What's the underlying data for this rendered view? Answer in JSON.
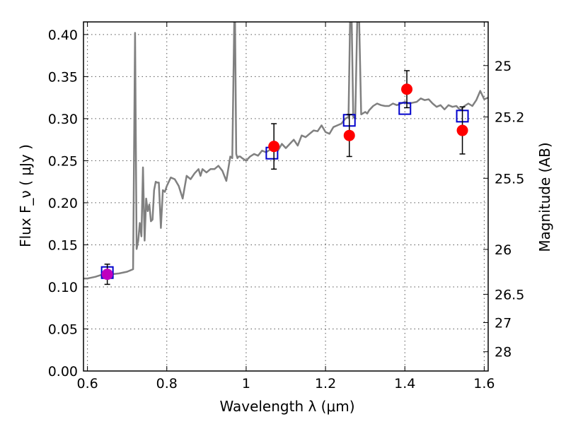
{
  "chart_data": {
    "type": "line",
    "xlabel": "Wavelength  λ (μm)",
    "ylabel": "Flux  F_ν  ( μJy )",
    "y2label": "Magnitude (AB)",
    "xlim": [
      0.59,
      1.61
    ],
    "ylim": [
      0.0,
      0.415
    ],
    "grid": true,
    "x_ticks": [
      0.6,
      0.8,
      1.0,
      1.2,
      1.4,
      1.6
    ],
    "x_tick_labels": [
      "0.6",
      "0.8",
      "1",
      "1.2",
      "1.4",
      "1.6"
    ],
    "y_ticks": [
      0.0,
      0.05,
      0.1,
      0.15,
      0.2,
      0.25,
      0.3,
      0.35,
      0.4
    ],
    "y_tick_labels": [
      "0.00",
      "0.05",
      "0.10",
      "0.15",
      "0.20",
      "0.25",
      "0.30",
      "0.35",
      "0.40"
    ],
    "mag_ticks": [
      25,
      25.2,
      25.5,
      26,
      26.5,
      27,
      28
    ],
    "mag_tick_labels": [
      "25",
      "25.2",
      "25.5",
      "26",
      "26.5",
      "27",
      "28"
    ],
    "colors": {
      "model": "#808080",
      "observed": "#ff0000",
      "magenta_point": "#bf00bf",
      "synthetic": "#0000cc",
      "errorbar": "#000000"
    },
    "series": [
      {
        "kind": "model_sed",
        "x": [
          0.59,
          0.6,
          0.62,
          0.64,
          0.66,
          0.68,
          0.7,
          0.715,
          0.72,
          0.724,
          0.728,
          0.732,
          0.736,
          0.74,
          0.744,
          0.748,
          0.752,
          0.756,
          0.76,
          0.764,
          0.768,
          0.772,
          0.776,
          0.78,
          0.785,
          0.79,
          0.795,
          0.8,
          0.81,
          0.82,
          0.83,
          0.84,
          0.85,
          0.86,
          0.87,
          0.88,
          0.885,
          0.89,
          0.9,
          0.91,
          0.92,
          0.93,
          0.94,
          0.95,
          0.96,
          0.965,
          0.97,
          0.972,
          0.975,
          0.978,
          0.981,
          0.985,
          0.99,
          1.0,
          1.01,
          1.02,
          1.03,
          1.04,
          1.05,
          1.06,
          1.07,
          1.08,
          1.09,
          1.1,
          1.11,
          1.12,
          1.13,
          1.14,
          1.15,
          1.16,
          1.17,
          1.18,
          1.19,
          1.2,
          1.21,
          1.22,
          1.23,
          1.24,
          1.25,
          1.258,
          1.262,
          1.266,
          1.27,
          1.275,
          1.28,
          1.285,
          1.29,
          1.3,
          1.305,
          1.31,
          1.32,
          1.33,
          1.34,
          1.35,
          1.36,
          1.37,
          1.38,
          1.39,
          1.4,
          1.41,
          1.42,
          1.43,
          1.44,
          1.45,
          1.46,
          1.47,
          1.48,
          1.49,
          1.5,
          1.51,
          1.52,
          1.53,
          1.54,
          1.55,
          1.56,
          1.57,
          1.58,
          1.59,
          1.6,
          1.61
        ],
        "y": [
          0.11,
          0.11,
          0.112,
          0.115,
          0.115,
          0.116,
          0.118,
          0.121,
          0.402,
          0.145,
          0.155,
          0.176,
          0.16,
          0.242,
          0.155,
          0.205,
          0.19,
          0.198,
          0.178,
          0.18,
          0.215,
          0.225,
          0.224,
          0.224,
          0.17,
          0.215,
          0.213,
          0.22,
          0.23,
          0.228,
          0.22,
          0.205,
          0.232,
          0.228,
          0.235,
          0.24,
          0.232,
          0.24,
          0.236,
          0.24,
          0.24,
          0.244,
          0.238,
          0.226,
          0.255,
          0.253,
          0.415,
          0.415,
          0.258,
          0.253,
          0.255,
          0.255,
          0.253,
          0.25,
          0.255,
          0.258,
          0.256,
          0.262,
          0.26,
          0.263,
          0.266,
          0.262,
          0.27,
          0.265,
          0.27,
          0.275,
          0.268,
          0.28,
          0.278,
          0.282,
          0.286,
          0.285,
          0.292,
          0.284,
          0.282,
          0.29,
          0.292,
          0.294,
          0.3,
          0.302,
          0.415,
          0.415,
          0.302,
          0.3,
          0.415,
          0.415,
          0.305,
          0.308,
          0.306,
          0.31,
          0.315,
          0.318,
          0.316,
          0.315,
          0.315,
          0.318,
          0.316,
          0.318,
          0.32,
          0.318,
          0.319,
          0.32,
          0.324,
          0.322,
          0.323,
          0.318,
          0.314,
          0.316,
          0.311,
          0.316,
          0.314,
          0.315,
          0.31,
          0.315,
          0.318,
          0.315,
          0.322,
          0.333,
          0.323,
          0.325
        ]
      },
      {
        "kind": "observed",
        "x": [
          0.65,
          1.07,
          1.26,
          1.405,
          1.545
        ],
        "y": [
          0.115,
          0.267,
          0.28,
          0.335,
          0.286
        ],
        "yerr": [
          0.012,
          0.027,
          0.025,
          0.022,
          0.028
        ]
      },
      {
        "kind": "synthetic",
        "x": [
          0.65,
          1.065,
          1.26,
          1.4,
          1.545
        ],
        "y": [
          0.117,
          0.259,
          0.298,
          0.312,
          0.303
        ]
      }
    ]
  }
}
